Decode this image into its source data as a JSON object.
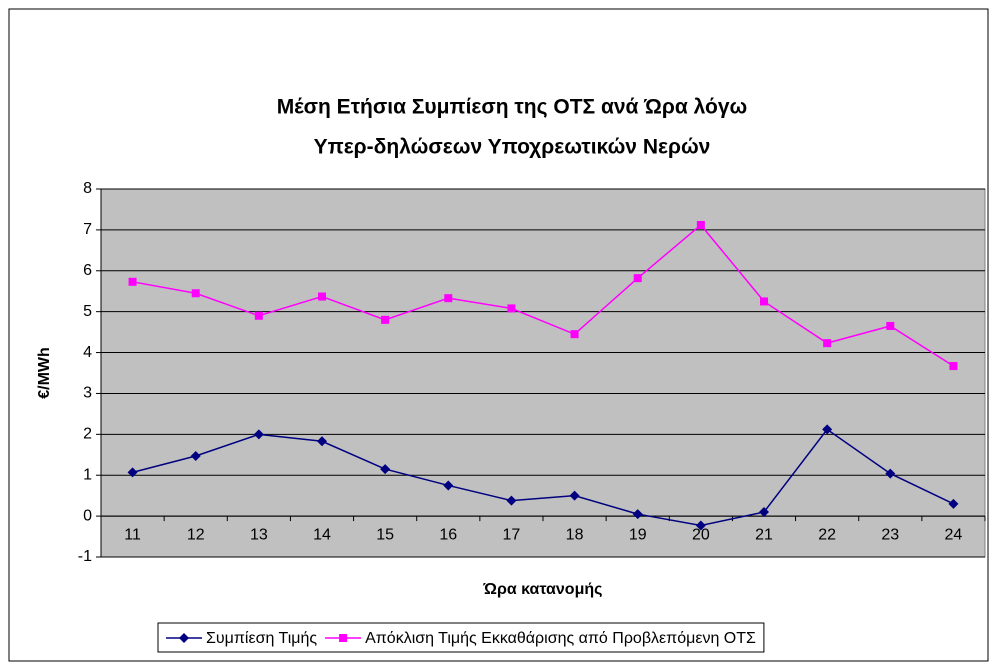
{
  "chart_data": {
    "type": "line",
    "title": [
      "Μέση Ετήσια Συμπίεση της ΟΤΣ ανά Ώρα λόγω",
      "Υπερ-δηλώσεων Υποχρεωτικών Νερών"
    ],
    "x_label": "Ώρα κατανομής",
    "y_label": "€/MWh",
    "categories": [
      "11",
      "12",
      "13",
      "14",
      "15",
      "16",
      "17",
      "18",
      "19",
      "20",
      "21",
      "22",
      "23",
      "24"
    ],
    "series": [
      {
        "name": "Συμπίεση Τιμής",
        "color": "#000080",
        "marker": "diamond",
        "values": [
          1.07,
          1.47,
          2.0,
          1.83,
          1.15,
          0.75,
          0.38,
          0.5,
          0.05,
          -0.23,
          0.1,
          2.12,
          1.04,
          0.3
        ]
      },
      {
        "name": "Απόκλιση Τιμής Εκκαθάρισης από Προβλεπόμενη ΟΤΣ",
        "color": "#ff00ff",
        "marker": "square",
        "values": [
          5.73,
          5.45,
          4.9,
          5.37,
          4.8,
          5.33,
          5.08,
          4.45,
          5.82,
          7.12,
          5.25,
          4.23,
          4.65,
          3.67
        ]
      }
    ],
    "ylim": [
      -1,
      8
    ],
    "yticks": [
      -1,
      0,
      1,
      2,
      3,
      4,
      5,
      6,
      7,
      8
    ],
    "grid": true,
    "plot_background": "#c0c0c0",
    "legend": "bottom"
  }
}
